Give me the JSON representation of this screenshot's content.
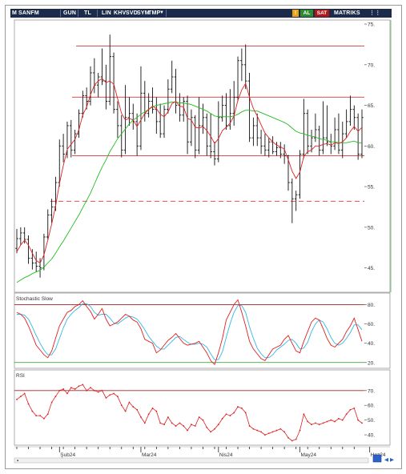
{
  "toolbar": {
    "logo": "M",
    "symbol": "SANFM",
    "period": "GUN",
    "currency": "TL",
    "scale": "LIN",
    "buttons": [
      "KHV",
      "SVD",
      "SYM",
      "TMP"
    ],
    "alert_label": "!",
    "buy_label": "AL",
    "sell_label": "SAT",
    "brand": "MATRIKS"
  },
  "colors": {
    "toolbar_bg": "#1c2b4a",
    "buy_bg": "#2e8b2e",
    "sell_bg": "#b01818",
    "alert_bg": "#e8a317",
    "price_axis_bar": "#8ec98e",
    "candle": "#111111",
    "ma_short": "#e02020",
    "ma_long": "#22bb22",
    "level_line": "#e05050",
    "stoch_k": "#e02020",
    "stoch_d": "#33b7e6",
    "rsi": "#e02020",
    "ref_line_top": "#aa2222",
    "ref_line_bottom": "#229922"
  },
  "chart_data": [
    {
      "type": "candlestick",
      "panel": "price",
      "ylim": [
        42,
        75.5
      ],
      "yticks": [
        "75.",
        "70.",
        "65.",
        "60.",
        "55.",
        "50.",
        "45."
      ],
      "ytick_values": [
        75,
        70,
        65,
        60,
        55,
        50,
        45
      ],
      "xticks": [
        "Şub24",
        "Mar24",
        "Nis24",
        "May24",
        "Haz24"
      ],
      "xtick_index": [
        11,
        32,
        52,
        73,
        91
      ],
      "horizontal_levels": [
        72.3,
        66,
        58.8
      ],
      "dashed_level": 53.2,
      "bars": [
        [
          47.4,
          49.8,
          46.8,
          48.6
        ],
        [
          48.6,
          50.0,
          47.8,
          49.3
        ],
        [
          49.3,
          50.0,
          48.0,
          48.5
        ],
        [
          48.5,
          49.0,
          45.5,
          46.2
        ],
        [
          46.2,
          47.3,
          44.8,
          45.6
        ],
        [
          45.6,
          47.0,
          44.5,
          45.2
        ],
        [
          45.2,
          46.2,
          43.8,
          45.0
        ],
        [
          45.0,
          49.2,
          44.7,
          48.8
        ],
        [
          48.8,
          52.2,
          48.5,
          51.5
        ],
        [
          51.5,
          53.5,
          50.5,
          52.5
        ],
        [
          52.5,
          56.2,
          52.0,
          55.5
        ],
        [
          55.5,
          60.8,
          55.0,
          60.0
        ],
        [
          60.0,
          61.5,
          58.0,
          59.0
        ],
        [
          59.0,
          63.0,
          58.5,
          62.5
        ],
        [
          62.5,
          63.2,
          58.6,
          59.5
        ],
        [
          59.5,
          62.0,
          59.0,
          61.5
        ],
        [
          61.5,
          64.5,
          61.0,
          64.0
        ],
        [
          64.0,
          66.8,
          63.5,
          66.2
        ],
        [
          66.2,
          67.2,
          64.5,
          65.5
        ],
        [
          65.5,
          69.8,
          65.0,
          69.0
        ],
        [
          69.0,
          70.8,
          66.5,
          67.5
        ],
        [
          67.5,
          69.0,
          66.0,
          68.5
        ],
        [
          68.5,
          72.0,
          67.5,
          68.0
        ],
        [
          68.0,
          70.0,
          64.5,
          65.5
        ],
        [
          65.5,
          73.7,
          65.0,
          71.0
        ],
        [
          71.0,
          71.5,
          64.0,
          64.5
        ],
        [
          64.5,
          65.5,
          61.0,
          62.5
        ],
        [
          62.5,
          63.8,
          58.6,
          59.5
        ],
        [
          59.5,
          67.5,
          59.0,
          63.5
        ],
        [
          63.5,
          66.0,
          62.5,
          64.0
        ],
        [
          64.0,
          65.2,
          62.0,
          63.0
        ],
        [
          63.0,
          64.0,
          58.8,
          60.0
        ],
        [
          60.0,
          69.8,
          59.5,
          66.5
        ],
        [
          66.5,
          68.0,
          63.0,
          64.0
        ],
        [
          64.0,
          66.5,
          63.5,
          65.5
        ],
        [
          65.5,
          67.2,
          64.0,
          64.5
        ],
        [
          64.5,
          66.0,
          61.5,
          63.0
        ],
        [
          63.0,
          65.2,
          61.0,
          61.5
        ],
        [
          61.5,
          65.0,
          61.0,
          64.5
        ],
        [
          64.5,
          68.2,
          64.0,
          67.0
        ],
        [
          67.0,
          70.5,
          66.5,
          68.5
        ],
        [
          68.5,
          69.5,
          64.0,
          65.0
        ],
        [
          65.0,
          66.5,
          63.0,
          63.8
        ],
        [
          63.8,
          66.0,
          63.0,
          65.5
        ],
        [
          65.5,
          66.2,
          59.0,
          60.5
        ],
        [
          60.5,
          64.5,
          60.0,
          63.5
        ],
        [
          63.5,
          63.8,
          58.5,
          59.5
        ],
        [
          59.5,
          66.0,
          59.0,
          62.5
        ],
        [
          62.5,
          65.2,
          61.5,
          63.5
        ],
        [
          63.5,
          64.0,
          58.8,
          60.0
        ],
        [
          60.0,
          64.0,
          58.5,
          59.3
        ],
        [
          59.3,
          60.5,
          57.6,
          58.4
        ],
        [
          58.4,
          65.5,
          58.0,
          63.5
        ],
        [
          63.5,
          66.2,
          63.0,
          65.0
        ],
        [
          65.0,
          66.5,
          62.0,
          62.5
        ],
        [
          62.5,
          67.0,
          62.0,
          64.0
        ],
        [
          64.0,
          68.0,
          62.5,
          66.0
        ],
        [
          66.0,
          71.0,
          65.5,
          70.5
        ],
        [
          70.5,
          72.0,
          68.0,
          70.0
        ],
        [
          70.0,
          72.5,
          67.0,
          68.0
        ],
        [
          68.0,
          69.0,
          60.5,
          61.0
        ],
        [
          61.0,
          63.5,
          60.0,
          62.5
        ],
        [
          62.5,
          64.0,
          60.0,
          61.0
        ],
        [
          61.0,
          62.0,
          59.0,
          60.0
        ],
        [
          60.0,
          61.5,
          58.8,
          59.5
        ],
        [
          59.5,
          61.0,
          58.6,
          60.5
        ],
        [
          60.5,
          61.2,
          59.0,
          59.3
        ],
        [
          59.3,
          60.5,
          58.8,
          59.8
        ],
        [
          59.8,
          60.5,
          58.5,
          59.0
        ],
        [
          59.0,
          60.2,
          57.8,
          58.8
        ],
        [
          58.8,
          58.9,
          54.5,
          55.5
        ],
        [
          55.5,
          56.0,
          50.5,
          53.5
        ],
        [
          53.5,
          54.5,
          52.0,
          54.0
        ],
        [
          54.0,
          59.5,
          53.5,
          59.0
        ],
        [
          59.0,
          65.8,
          58.5,
          64.0
        ],
        [
          64.0,
          64.5,
          59.0,
          60.0
        ],
        [
          60.0,
          62.0,
          59.2,
          61.0
        ],
        [
          61.0,
          64.0,
          60.5,
          62.0
        ],
        [
          62.0,
          62.5,
          58.8,
          59.5
        ],
        [
          59.5,
          65.5,
          59.0,
          61.0
        ],
        [
          61.0,
          65.0,
          60.0,
          60.5
        ],
        [
          60.5,
          61.5,
          59.0,
          60.0
        ],
        [
          60.0,
          63.5,
          59.5,
          62.0
        ],
        [
          62.0,
          64.0,
          59.0,
          59.5
        ],
        [
          59.5,
          63.0,
          58.5,
          61.5
        ],
        [
          61.5,
          64.5,
          61.0,
          63.0
        ],
        [
          63.0,
          66.2,
          62.5,
          64.5
        ],
        [
          64.5,
          65.0,
          62.0,
          63.5
        ],
        [
          63.5,
          64.0,
          58.3,
          59.0
        ],
        [
          59.0,
          64.5,
          58.5,
          63.5
        ]
      ],
      "ma_short": [
        47.0,
        47.8,
        48.4,
        47.8,
        46.8,
        45.9,
        45.6,
        46.6,
        48.4,
        50.4,
        52.6,
        55.4,
        57.6,
        59.6,
        60.2,
        60.8,
        62.0,
        63.8,
        64.8,
        66.3,
        67.5,
        68.0,
        68.3,
        67.8,
        68.0,
        67.6,
        65.8,
        64.0,
        63.2,
        63.4,
        63.2,
        62.4,
        63.2,
        64.0,
        64.5,
        64.9,
        64.6,
        63.9,
        63.6,
        64.2,
        65.2,
        65.5,
        64.9,
        64.8,
        63.4,
        63.2,
        62.3,
        62.2,
        62.4,
        61.9,
        61.2,
        60.3,
        60.9,
        61.9,
        62.3,
        62.8,
        63.7,
        65.6,
        66.9,
        67.7,
        66.0,
        64.6,
        63.7,
        62.6,
        61.6,
        61.0,
        60.5,
        60.1,
        59.9,
        59.6,
        58.3,
        56.9,
        56.0,
        56.8,
        58.7,
        59.3,
        59.5,
        60.0,
        60.0,
        60.2,
        60.3,
        60.1,
        60.4,
        60.3,
        60.5,
        61.0,
        61.8,
        62.4,
        61.8,
        62.3
      ],
      "ma_long": [
        43.2,
        43.5,
        43.8,
        44.0,
        44.3,
        44.5,
        44.7,
        45.1,
        45.6,
        46.1,
        46.8,
        47.6,
        48.3,
        49.1,
        49.9,
        50.7,
        51.5,
        52.4,
        53.3,
        54.2,
        55.3,
        56.4,
        57.4,
        58.3,
        59.3,
        60.1,
        60.9,
        61.5,
        62.1,
        62.7,
        63.2,
        63.5,
        63.9,
        64.2,
        64.5,
        64.8,
        65.0,
        65.1,
        65.2,
        65.3,
        65.4,
        65.4,
        65.3,
        65.3,
        65.2,
        65.1,
        64.9,
        64.7,
        64.5,
        64.3,
        64.0,
        63.7,
        63.6,
        63.6,
        63.6,
        63.6,
        63.7,
        63.9,
        64.2,
        64.4,
        64.4,
        64.3,
        64.3,
        64.1,
        63.9,
        63.7,
        63.5,
        63.3,
        63.1,
        62.9,
        62.6,
        62.2,
        61.8,
        61.6,
        61.5,
        61.3,
        61.2,
        61.1,
        60.9,
        60.8,
        60.7,
        60.5,
        60.5,
        60.4,
        60.4,
        60.4,
        60.5,
        60.6,
        60.4,
        60.4
      ]
    },
    {
      "type": "line",
      "panel": "stochastic",
      "title": "Stochastic Slow",
      "ylim": [
        14,
        92
      ],
      "yticks": [
        "80.",
        "60.",
        "40.",
        "20."
      ],
      "ytick_values": [
        80,
        60,
        40,
        20
      ],
      "ref_lines": [
        80,
        20
      ],
      "series": [
        {
          "key": "k",
          "values": [
            72,
            70,
            66,
            58,
            48,
            38,
            33,
            28,
            25,
            32,
            45,
            58,
            65,
            72,
            74,
            78,
            80,
            84,
            78,
            73,
            65,
            70,
            76,
            65,
            58,
            60,
            62,
            66,
            70,
            68,
            64,
            62,
            55,
            44,
            42,
            40,
            30,
            33,
            38,
            43,
            46,
            50,
            45,
            40,
            38,
            39,
            40,
            42,
            36,
            30,
            22,
            18,
            30,
            45,
            64,
            72,
            80,
            85,
            72,
            58,
            42,
            34,
            29,
            24,
            22,
            28,
            34,
            36,
            38,
            44,
            48,
            40,
            32,
            30,
            42,
            52,
            62,
            66,
            64,
            55,
            45,
            38,
            36,
            40,
            44,
            52,
            58,
            66,
            54,
            42
          ]
        },
        {
          "key": "d",
          "values": [
            70,
            70,
            69,
            65,
            57,
            48,
            40,
            33,
            28,
            28,
            34,
            45,
            56,
            65,
            70,
            74,
            77,
            81,
            81,
            78,
            72,
            69,
            70,
            70,
            66,
            61,
            60,
            63,
            66,
            68,
            67,
            65,
            60,
            54,
            47,
            42,
            37,
            34,
            34,
            38,
            42,
            46,
            47,
            44,
            41,
            39,
            39,
            40,
            39,
            36,
            29,
            23,
            23,
            31,
            46,
            60,
            72,
            79,
            79,
            72,
            57,
            45,
            35,
            29,
            25,
            25,
            28,
            33,
            36,
            39,
            43,
            44,
            40,
            34,
            35,
            41,
            52,
            60,
            64,
            62,
            55,
            46,
            40,
            38,
            40,
            45,
            51,
            59,
            59,
            54
          ]
        }
      ]
    },
    {
      "type": "line",
      "panel": "rsi",
      "title": "RSI",
      "ylim": [
        33,
        84
      ],
      "yticks": [
        "70.",
        "60.",
        "50.",
        "40."
      ],
      "ytick_values": [
        70,
        60,
        50,
        40
      ],
      "ref_lines": [
        70
      ],
      "series": [
        {
          "key": "rsi",
          "values": [
            64,
            66,
            68,
            61,
            56,
            53,
            53,
            51,
            54,
            62,
            66,
            70,
            71,
            68,
            72,
            71,
            73,
            74,
            70,
            72,
            70,
            69,
            70,
            65,
            67,
            68,
            66,
            60,
            56,
            62,
            59,
            57,
            52,
            48,
            54,
            58,
            56,
            48,
            47,
            52,
            48,
            46,
            48,
            46,
            43,
            47,
            46,
            52,
            50,
            45,
            42,
            44,
            47,
            51,
            54,
            53,
            55,
            59,
            58,
            55,
            46,
            44,
            43,
            42,
            40,
            41,
            42,
            43,
            44,
            42,
            38,
            36,
            37,
            43,
            54,
            49,
            47,
            48,
            47,
            48,
            49,
            50,
            49,
            51,
            50,
            54,
            57,
            58,
            50,
            48
          ]
        }
      ]
    }
  ]
}
